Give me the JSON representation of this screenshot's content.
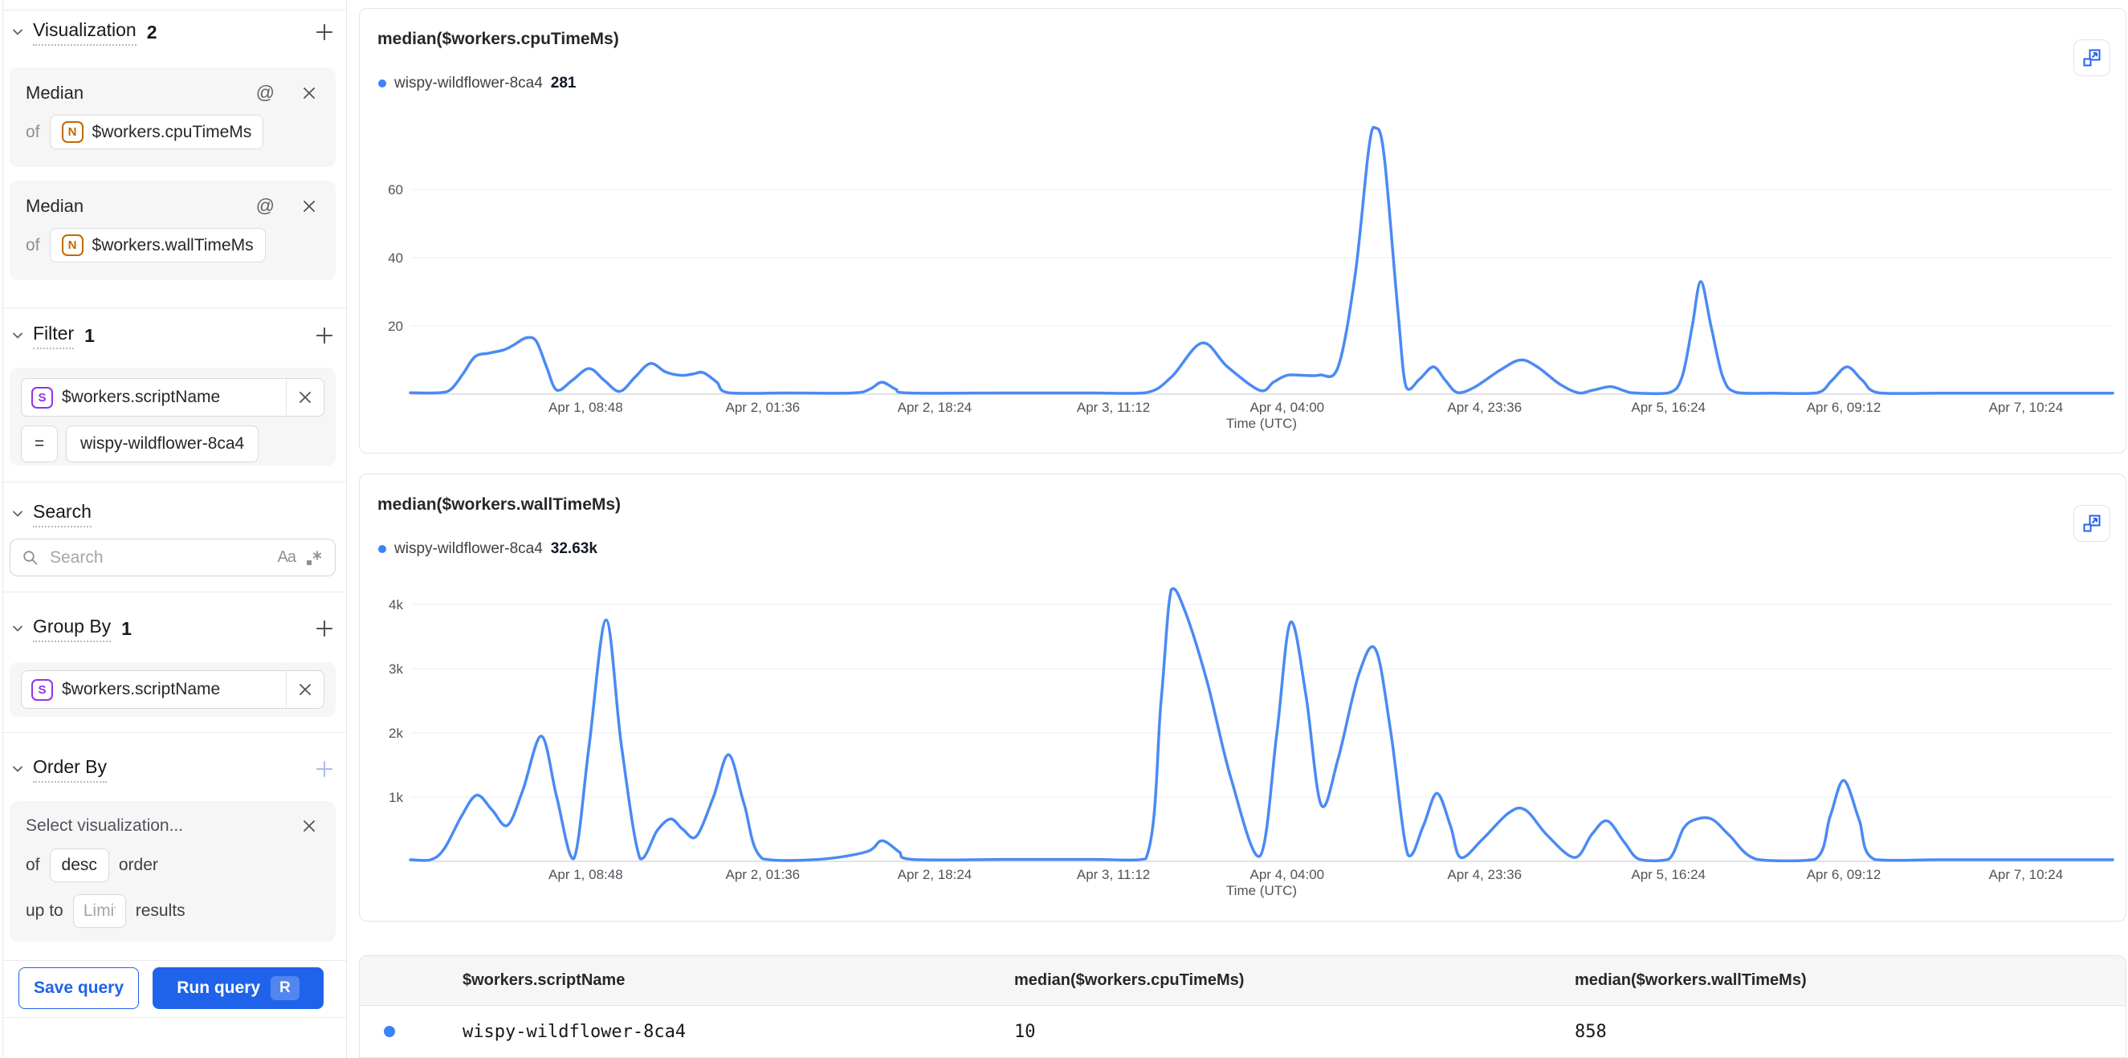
{
  "colors": {
    "accent_blue": "#3b82f6",
    "line_blue": "#4a8af4",
    "button_blue": "#2063eb",
    "purple": "#9333ea",
    "orange": "#bf6a02"
  },
  "sidebar": {
    "of_label": "of",
    "icons": {
      "at": "@",
      "match_case": "Aa"
    },
    "visualization": {
      "label": "Visualization",
      "count": "2",
      "metrics": [
        {
          "fn": "Median",
          "field": "$workers.cpuTimeMs",
          "field_type": "N"
        },
        {
          "fn": "Median",
          "field": "$workers.wallTimeMs",
          "field_type": "N"
        }
      ]
    },
    "filter": {
      "label": "Filter",
      "count": "1",
      "field": "$workers.scriptName",
      "field_type": "S",
      "operator": "=",
      "value": "wispy-wildflower-8ca4"
    },
    "search": {
      "label": "Search",
      "placeholder": "Search"
    },
    "group_by": {
      "label": "Group By",
      "count": "1",
      "field": "$workers.scriptName",
      "field_type": "S"
    },
    "order_by": {
      "label": "Order By",
      "selector_placeholder": "Select visualization...",
      "order_value": "desc",
      "order_suffix": "order",
      "up_to_label": "up to",
      "limit_placeholder": "Limit",
      "results_suffix": "results"
    },
    "actions": {
      "save": "Save query",
      "run": "Run query",
      "run_shortcut": "R"
    }
  },
  "chart_data": [
    {
      "type": "line",
      "title": "median($workers.cpuTimeMs)",
      "legend": {
        "name": "wispy-wildflower-8ca4",
        "value": "281"
      },
      "xlabel": "Time (UTC)",
      "ylim": [
        0,
        80
      ],
      "grid": true,
      "yticks": [
        {
          "v": 20,
          "label": "20"
        },
        {
          "v": 40,
          "label": "40"
        },
        {
          "v": 60,
          "label": "60"
        }
      ],
      "xticks": [
        {
          "f": 0.103,
          "label": "Apr 1, 08:48"
        },
        {
          "f": 0.207,
          "label": "Apr 2, 01:36"
        },
        {
          "f": 0.308,
          "label": "Apr 2, 18:24"
        },
        {
          "f": 0.413,
          "label": "Apr 3, 11:12"
        },
        {
          "f": 0.515,
          "label": "Apr 4, 04:00"
        },
        {
          "f": 0.631,
          "label": "Apr 4, 23:36"
        },
        {
          "f": 0.739,
          "label": "Apr 5, 16:24"
        },
        {
          "f": 0.842,
          "label": "Apr 6, 09:12"
        },
        {
          "f": 0.949,
          "label": "Apr 7, 10:24"
        }
      ],
      "points": [
        [
          0.0,
          0.4
        ],
        [
          0.017,
          0.4
        ],
        [
          0.024,
          1.5
        ],
        [
          0.031,
          6
        ],
        [
          0.038,
          11
        ],
        [
          0.046,
          12
        ],
        [
          0.055,
          13
        ],
        [
          0.061,
          14.5
        ],
        [
          0.068,
          16.5
        ],
        [
          0.074,
          15.5
        ],
        [
          0.08,
          8
        ],
        [
          0.086,
          1.2
        ],
        [
          0.095,
          4
        ],
        [
          0.105,
          7.5
        ],
        [
          0.114,
          4
        ],
        [
          0.123,
          0.8
        ],
        [
          0.132,
          5
        ],
        [
          0.141,
          9
        ],
        [
          0.15,
          6.5
        ],
        [
          0.159,
          5.5
        ],
        [
          0.166,
          5.9
        ],
        [
          0.172,
          6.3
        ],
        [
          0.18,
          3.5
        ],
        [
          0.187,
          0.4
        ],
        [
          0.22,
          0.35
        ],
        [
          0.26,
          0.35
        ],
        [
          0.27,
          1.5
        ],
        [
          0.277,
          3.5
        ],
        [
          0.285,
          1.5
        ],
        [
          0.293,
          0.35
        ],
        [
          0.35,
          0.35
        ],
        [
          0.4,
          0.35
        ],
        [
          0.432,
          0.4
        ],
        [
          0.447,
          5
        ],
        [
          0.465,
          15
        ],
        [
          0.48,
          8
        ],
        [
          0.499,
          1.1
        ],
        [
          0.507,
          3.5
        ],
        [
          0.515,
          5.5
        ],
        [
          0.525,
          5.5
        ],
        [
          0.534,
          5.6
        ],
        [
          0.545,
          8
        ],
        [
          0.555,
          35
        ],
        [
          0.563,
          72
        ],
        [
          0.567,
          78
        ],
        [
          0.572,
          70
        ],
        [
          0.58,
          25
        ],
        [
          0.585,
          2
        ],
        [
          0.593,
          4.5
        ],
        [
          0.601,
          8
        ],
        [
          0.608,
          4
        ],
        [
          0.615,
          0.5
        ],
        [
          0.625,
          2
        ],
        [
          0.64,
          7
        ],
        [
          0.652,
          10
        ],
        [
          0.662,
          8
        ],
        [
          0.675,
          3
        ],
        [
          0.686,
          0.4
        ],
        [
          0.695,
          1.2
        ],
        [
          0.705,
          2.2
        ],
        [
          0.713,
          1
        ],
        [
          0.719,
          0.35
        ],
        [
          0.739,
          0.35
        ],
        [
          0.747,
          5
        ],
        [
          0.753,
          20
        ],
        [
          0.758,
          33
        ],
        [
          0.764,
          20
        ],
        [
          0.771,
          5
        ],
        [
          0.779,
          0.5
        ],
        [
          0.8,
          0.3
        ],
        [
          0.826,
          0.35
        ],
        [
          0.835,
          4
        ],
        [
          0.844,
          8
        ],
        [
          0.853,
          4
        ],
        [
          0.863,
          0.35
        ],
        [
          0.9,
          0.3
        ],
        [
          0.95,
          0.3
        ],
        [
          1.0,
          0.3
        ]
      ]
    },
    {
      "type": "line",
      "title": "median($workers.wallTimeMs)",
      "legend": {
        "name": "wispy-wildflower-8ca4",
        "value": "32.63k"
      },
      "xlabel": "Time (UTC)",
      "ylim": [
        0,
        4300
      ],
      "grid": true,
      "yticks": [
        {
          "v": 1000,
          "label": "1k"
        },
        {
          "v": 2000,
          "label": "2k"
        },
        {
          "v": 3000,
          "label": "3k"
        },
        {
          "v": 4000,
          "label": "4k"
        }
      ],
      "xticks": [
        {
          "f": 0.103,
          "label": "Apr 1, 08:48"
        },
        {
          "f": 0.207,
          "label": "Apr 2, 01:36"
        },
        {
          "f": 0.308,
          "label": "Apr 2, 18:24"
        },
        {
          "f": 0.413,
          "label": "Apr 3, 11:12"
        },
        {
          "f": 0.515,
          "label": "Apr 4, 04:00"
        },
        {
          "f": 0.631,
          "label": "Apr 4, 23:36"
        },
        {
          "f": 0.739,
          "label": "Apr 5, 16:24"
        },
        {
          "f": 0.842,
          "label": "Apr 6, 09:12"
        },
        {
          "f": 0.949,
          "label": "Apr 7, 10:24"
        }
      ],
      "points": [
        [
          0.0,
          25
        ],
        [
          0.012,
          25
        ],
        [
          0.02,
          200
        ],
        [
          0.03,
          700
        ],
        [
          0.039,
          1030
        ],
        [
          0.048,
          800
        ],
        [
          0.057,
          560
        ],
        [
          0.066,
          1100
        ],
        [
          0.077,
          1950
        ],
        [
          0.086,
          1000
        ],
        [
          0.096,
          40
        ],
        [
          0.105,
          1800
        ],
        [
          0.115,
          3760
        ],
        [
          0.124,
          1800
        ],
        [
          0.135,
          40
        ],
        [
          0.145,
          480
        ],
        [
          0.153,
          660
        ],
        [
          0.16,
          500
        ],
        [
          0.168,
          390
        ],
        [
          0.178,
          1000
        ],
        [
          0.187,
          1660
        ],
        [
          0.196,
          900
        ],
        [
          0.207,
          40
        ],
        [
          0.24,
          30
        ],
        [
          0.268,
          150
        ],
        [
          0.277,
          320
        ],
        [
          0.287,
          150
        ],
        [
          0.295,
          30
        ],
        [
          0.35,
          30
        ],
        [
          0.4,
          30
        ],
        [
          0.432,
          40
        ],
        [
          0.441,
          2500
        ],
        [
          0.447,
          4230
        ],
        [
          0.455,
          3900
        ],
        [
          0.468,
          2800
        ],
        [
          0.482,
          1300
        ],
        [
          0.499,
          80
        ],
        [
          0.509,
          2000
        ],
        [
          0.517,
          3720
        ],
        [
          0.526,
          2600
        ],
        [
          0.535,
          880
        ],
        [
          0.545,
          1600
        ],
        [
          0.557,
          2900
        ],
        [
          0.567,
          3300
        ],
        [
          0.576,
          2000
        ],
        [
          0.586,
          100
        ],
        [
          0.595,
          550
        ],
        [
          0.603,
          1060
        ],
        [
          0.611,
          550
        ],
        [
          0.617,
          60
        ],
        [
          0.63,
          350
        ],
        [
          0.645,
          750
        ],
        [
          0.655,
          800
        ],
        [
          0.668,
          400
        ],
        [
          0.684,
          60
        ],
        [
          0.694,
          420
        ],
        [
          0.703,
          630
        ],
        [
          0.713,
          300
        ],
        [
          0.722,
          30
        ],
        [
          0.739,
          30
        ],
        [
          0.748,
          520
        ],
        [
          0.756,
          660
        ],
        [
          0.765,
          650
        ],
        [
          0.775,
          400
        ],
        [
          0.791,
          30
        ],
        [
          0.825,
          30
        ],
        [
          0.834,
          700
        ],
        [
          0.842,
          1260
        ],
        [
          0.851,
          650
        ],
        [
          0.86,
          30
        ],
        [
          0.9,
          25
        ],
        [
          0.95,
          25
        ],
        [
          1.0,
          25
        ]
      ]
    }
  ],
  "table": {
    "headers": [
      "$workers.scriptName",
      "median($workers.cpuTimeMs)",
      "median($workers.wallTimeMs)"
    ],
    "row": {
      "script": "wispy-wildflower-8ca4",
      "cpu": "10",
      "wall": "858"
    }
  }
}
